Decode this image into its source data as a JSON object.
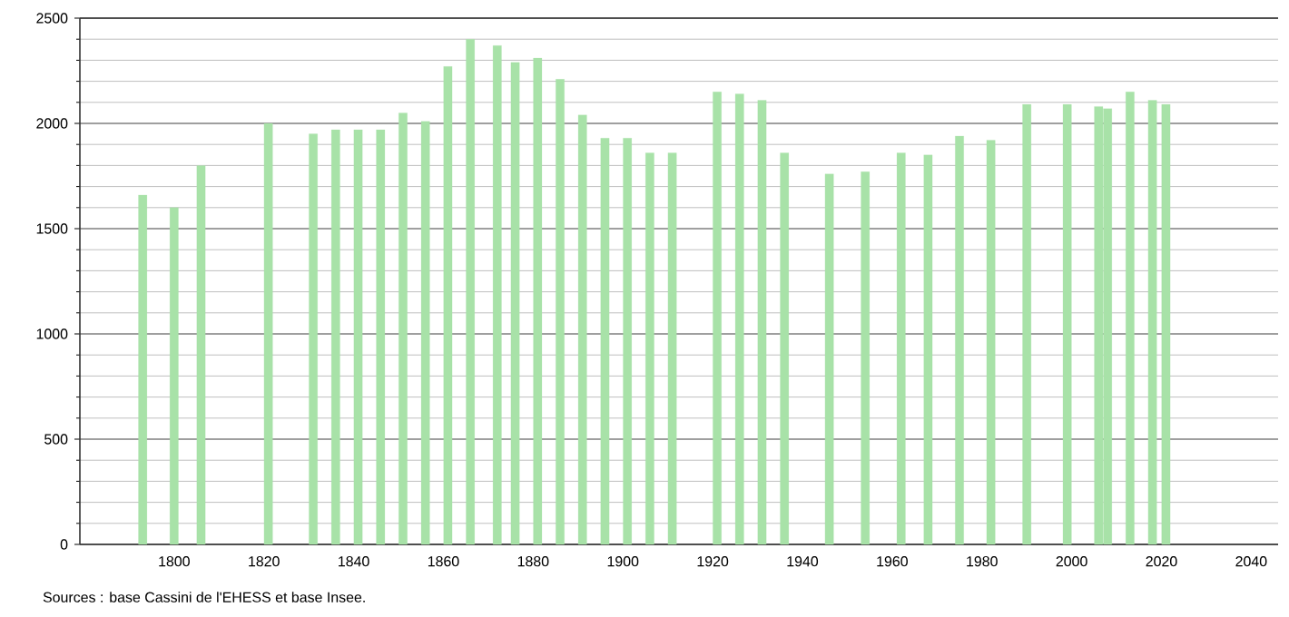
{
  "chart_data": {
    "type": "bar",
    "x": [
      1793,
      1800,
      1806,
      1821,
      1831,
      1836,
      1841,
      1846,
      1851,
      1856,
      1861,
      1866,
      1872,
      1876,
      1881,
      1886,
      1891,
      1896,
      1901,
      1906,
      1911,
      1921,
      1926,
      1931,
      1936,
      1946,
      1954,
      1962,
      1968,
      1975,
      1982,
      1990,
      1999,
      2006,
      2008,
      2013,
      2018,
      2021
    ],
    "values": [
      1660,
      1600,
      1800,
      2000,
      1950,
      1970,
      1970,
      1970,
      2050,
      2010,
      2270,
      2400,
      2370,
      2290,
      2310,
      2210,
      2040,
      1930,
      1930,
      1860,
      1860,
      2150,
      2140,
      2110,
      1860,
      1760,
      1770,
      1860,
      1850,
      1940,
      1920,
      2090,
      2090,
      2080,
      2070,
      2150,
      2110,
      2090
    ],
    "color": "#a8e2a8",
    "xlim": [
      1779,
      2046
    ],
    "ylim": [
      0,
      2500
    ],
    "xticks": [
      1800,
      1820,
      1840,
      1860,
      1880,
      1900,
      1920,
      1940,
      1960,
      1980,
      2000,
      2020,
      2040
    ],
    "yticks": [
      0,
      500,
      1000,
      1500,
      2000,
      2500
    ],
    "grid": "y",
    "annotations": [
      "Sources : base Cassini de l'EHESS et base Insee."
    ]
  }
}
